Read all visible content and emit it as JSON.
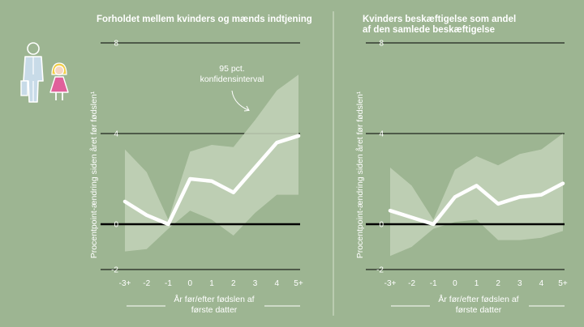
{
  "chart_data": [
    {
      "type": "line",
      "title": "Forholdet mellem kvinders og mænds indtjening",
      "xlabel_lines": [
        "År før/efter fødslen af",
        "første datter"
      ],
      "ylabel": "Procentpoint-ændring siden året før fødslen¹",
      "x": [
        "-3+",
        "-2",
        "-1",
        "0",
        "1",
        "2",
        "3",
        "4",
        "5+"
      ],
      "ylim": [
        -2,
        8
      ],
      "yticks": [
        "8",
        "4",
        "0",
        "-2"
      ],
      "series": [
        {
          "values": [
            1.0,
            0.4,
            0.0,
            2.0,
            1.9,
            1.4,
            2.5,
            3.6,
            3.9
          ]
        }
      ],
      "ci_upper": [
        3.3,
        2.3,
        0.2,
        3.2,
        3.5,
        3.4,
        4.6,
        5.9,
        6.6
      ],
      "ci_lower": [
        -1.2,
        -1.1,
        -0.2,
        0.6,
        0.2,
        -0.5,
        0.5,
        1.3,
        1.3
      ],
      "annotation_lines": [
        "95 pct.",
        "konfidensinterval"
      ],
      "colors": {
        "line": "#ffffff",
        "band": "#c3d2b9",
        "zero": "#000000"
      }
    },
    {
      "type": "line",
      "title_lines": [
        "Kvinders beskæftigelse som andel",
        "af den samlede beskæftigelse"
      ],
      "xlabel_lines": [
        "År før/efter fødslen af",
        "første datter"
      ],
      "ylabel": "Procentpoint-ændring siden året før fødslen¹",
      "x": [
        "-3+",
        "-2",
        "-1",
        "0",
        "1",
        "2",
        "3",
        "4",
        "5+"
      ],
      "ylim": [
        -2,
        8
      ],
      "yticks": [
        "8",
        "4",
        "0",
        "-2"
      ],
      "series": [
        {
          "values": [
            0.6,
            0.3,
            0.0,
            1.2,
            1.7,
            0.9,
            1.2,
            1.3,
            1.8
          ]
        }
      ],
      "ci_upper": [
        2.5,
        1.7,
        0.2,
        2.4,
        3.0,
        2.6,
        3.1,
        3.3,
        4.0
      ],
      "ci_lower": [
        -1.4,
        -1.0,
        -0.2,
        0.1,
        0.2,
        -0.7,
        -0.7,
        -0.6,
        -0.3
      ],
      "colors": {
        "line": "#ffffff",
        "band": "#c3d2b9",
        "zero": "#000000"
      }
    }
  ],
  "icons": {
    "family": [
      "father-icon",
      "daughter-icon"
    ],
    "colors": {
      "outline": "#ffffff",
      "dad_body": "#c8dbe8",
      "girl_dress": "#e0609b",
      "girl_hair": "#f2cf47",
      "girl_skin": "#f6d6c2"
    }
  }
}
